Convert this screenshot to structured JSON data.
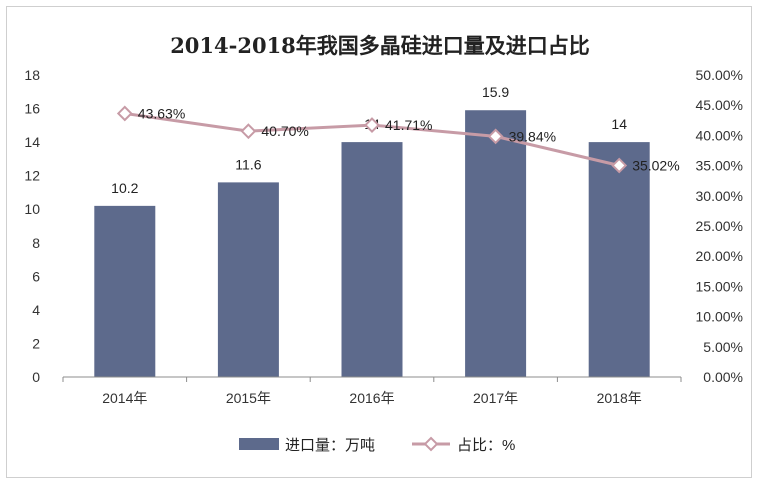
{
  "chart_data": {
    "type": "bar",
    "title": "2014-2018年我国多晶硅进口量及进口占比",
    "categories": [
      "2014年",
      "2015年",
      "2016年",
      "2017年",
      "2018年"
    ],
    "series": [
      {
        "name": "进口量：万吨",
        "type": "bar",
        "axis": "left",
        "values": [
          10.2,
          11.6,
          14,
          15.9,
          14
        ],
        "labels": [
          "10.2",
          "11.6",
          "14",
          "15.9",
          "14"
        ],
        "color": "#5d6a8c"
      },
      {
        "name": "占比：%",
        "type": "line",
        "axis": "right",
        "values": [
          43.63,
          40.7,
          41.71,
          39.84,
          35.02
        ],
        "labels": [
          "43.63%",
          "40.70%",
          "41.71%",
          "39.84%",
          "35.02%"
        ],
        "color": "#c79ba6"
      }
    ],
    "y_left": {
      "min": 0,
      "max": 18,
      "ticks": [
        "0",
        "2",
        "4",
        "6",
        "8",
        "10",
        "12",
        "14",
        "16",
        "18"
      ]
    },
    "y_right": {
      "min": 0,
      "max": 50,
      "ticks": [
        "0.00%",
        "5.00%",
        "10.00%",
        "15.00%",
        "20.00%",
        "25.00%",
        "30.00%",
        "35.00%",
        "40.00%",
        "45.00%",
        "50.00%"
      ]
    },
    "legend_position": "bottom",
    "grid": false
  }
}
